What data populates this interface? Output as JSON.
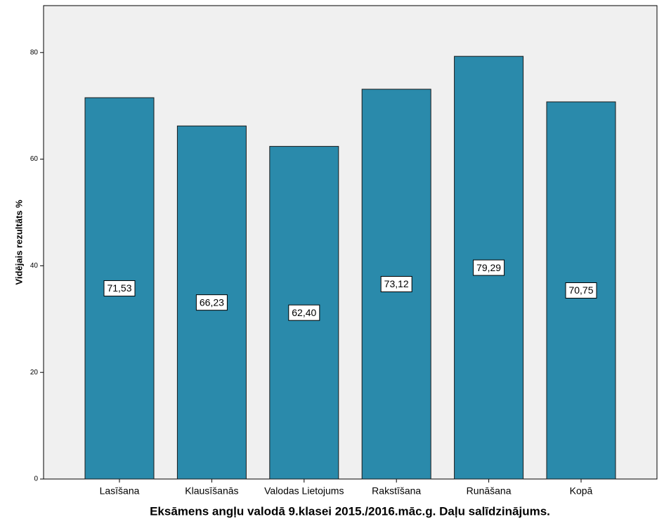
{
  "chart_data": {
    "type": "bar",
    "title": "Eksāmens angļu valodā 9.klasei 2015./2016.māc.g. Daļu salīdzinājums.",
    "y_label": "Vidējais rezultāts %",
    "categories": [
      "Lasīšana",
      "Klausīšanās",
      "Valodas Lietojums",
      "Rakstīšana",
      "Runāšana",
      "Kopā"
    ],
    "values": [
      71.53,
      66.23,
      62.4,
      73.12,
      79.29,
      70.75
    ],
    "value_labels": [
      "71,53",
      "66,23",
      "62,40",
      "73,12",
      "79,29",
      "70,75"
    ],
    "color": "#2a8aab",
    "ylim": [
      0,
      88.8
    ],
    "yticks": [
      0,
      20,
      40,
      60,
      80
    ],
    "grid": false
  }
}
